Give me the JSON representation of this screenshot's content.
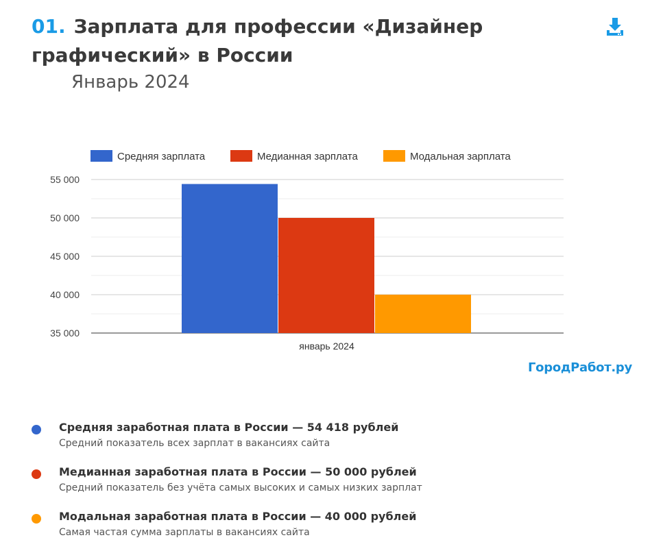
{
  "header": {
    "number": "01.",
    "title": "Зарплата для профессии «Дизайнер графический» в России",
    "subtitle": "Январь 2024"
  },
  "download_icon": "download-icon",
  "brand": "ГородРабот.ру",
  "colors": {
    "accent": "#1a9be6",
    "average": "#3366cc",
    "median": "#dc3912",
    "modal": "#ff9900"
  },
  "chart_data": {
    "type": "bar",
    "categories": [
      "январь 2024"
    ],
    "series": [
      {
        "name": "Средняя зарплата",
        "values": [
          54418
        ],
        "color": "#3366cc"
      },
      {
        "name": "Медианная зарплата",
        "values": [
          50000
        ],
        "color": "#dc3912"
      },
      {
        "name": "Модальная зарплата",
        "values": [
          40000
        ],
        "color": "#ff9900"
      }
    ],
    "ylim": [
      35000,
      55000
    ],
    "yticks": [
      35000,
      40000,
      45000,
      50000,
      55000
    ],
    "ytick_labels": [
      "35 000",
      "40 000",
      "45 000",
      "50 000",
      "55 000"
    ],
    "legend_position": "top",
    "grid": true
  },
  "info": [
    {
      "title": "Средняя заработная плата в России — 54 418 рублей",
      "desc": "Средний показатель всех зарплат в вакансиях сайта",
      "color": "#3366cc"
    },
    {
      "title": "Медианная заработная плата в России — 50 000 рублей",
      "desc": "Средний показатель без учёта самых высоких и самых низких зарплат",
      "color": "#dc3912"
    },
    {
      "title": "Модальная заработная плата в России — 40 000 рублей",
      "desc": "Самая частая сумма зарплаты в вакансиях сайта",
      "color": "#ff9900"
    }
  ]
}
